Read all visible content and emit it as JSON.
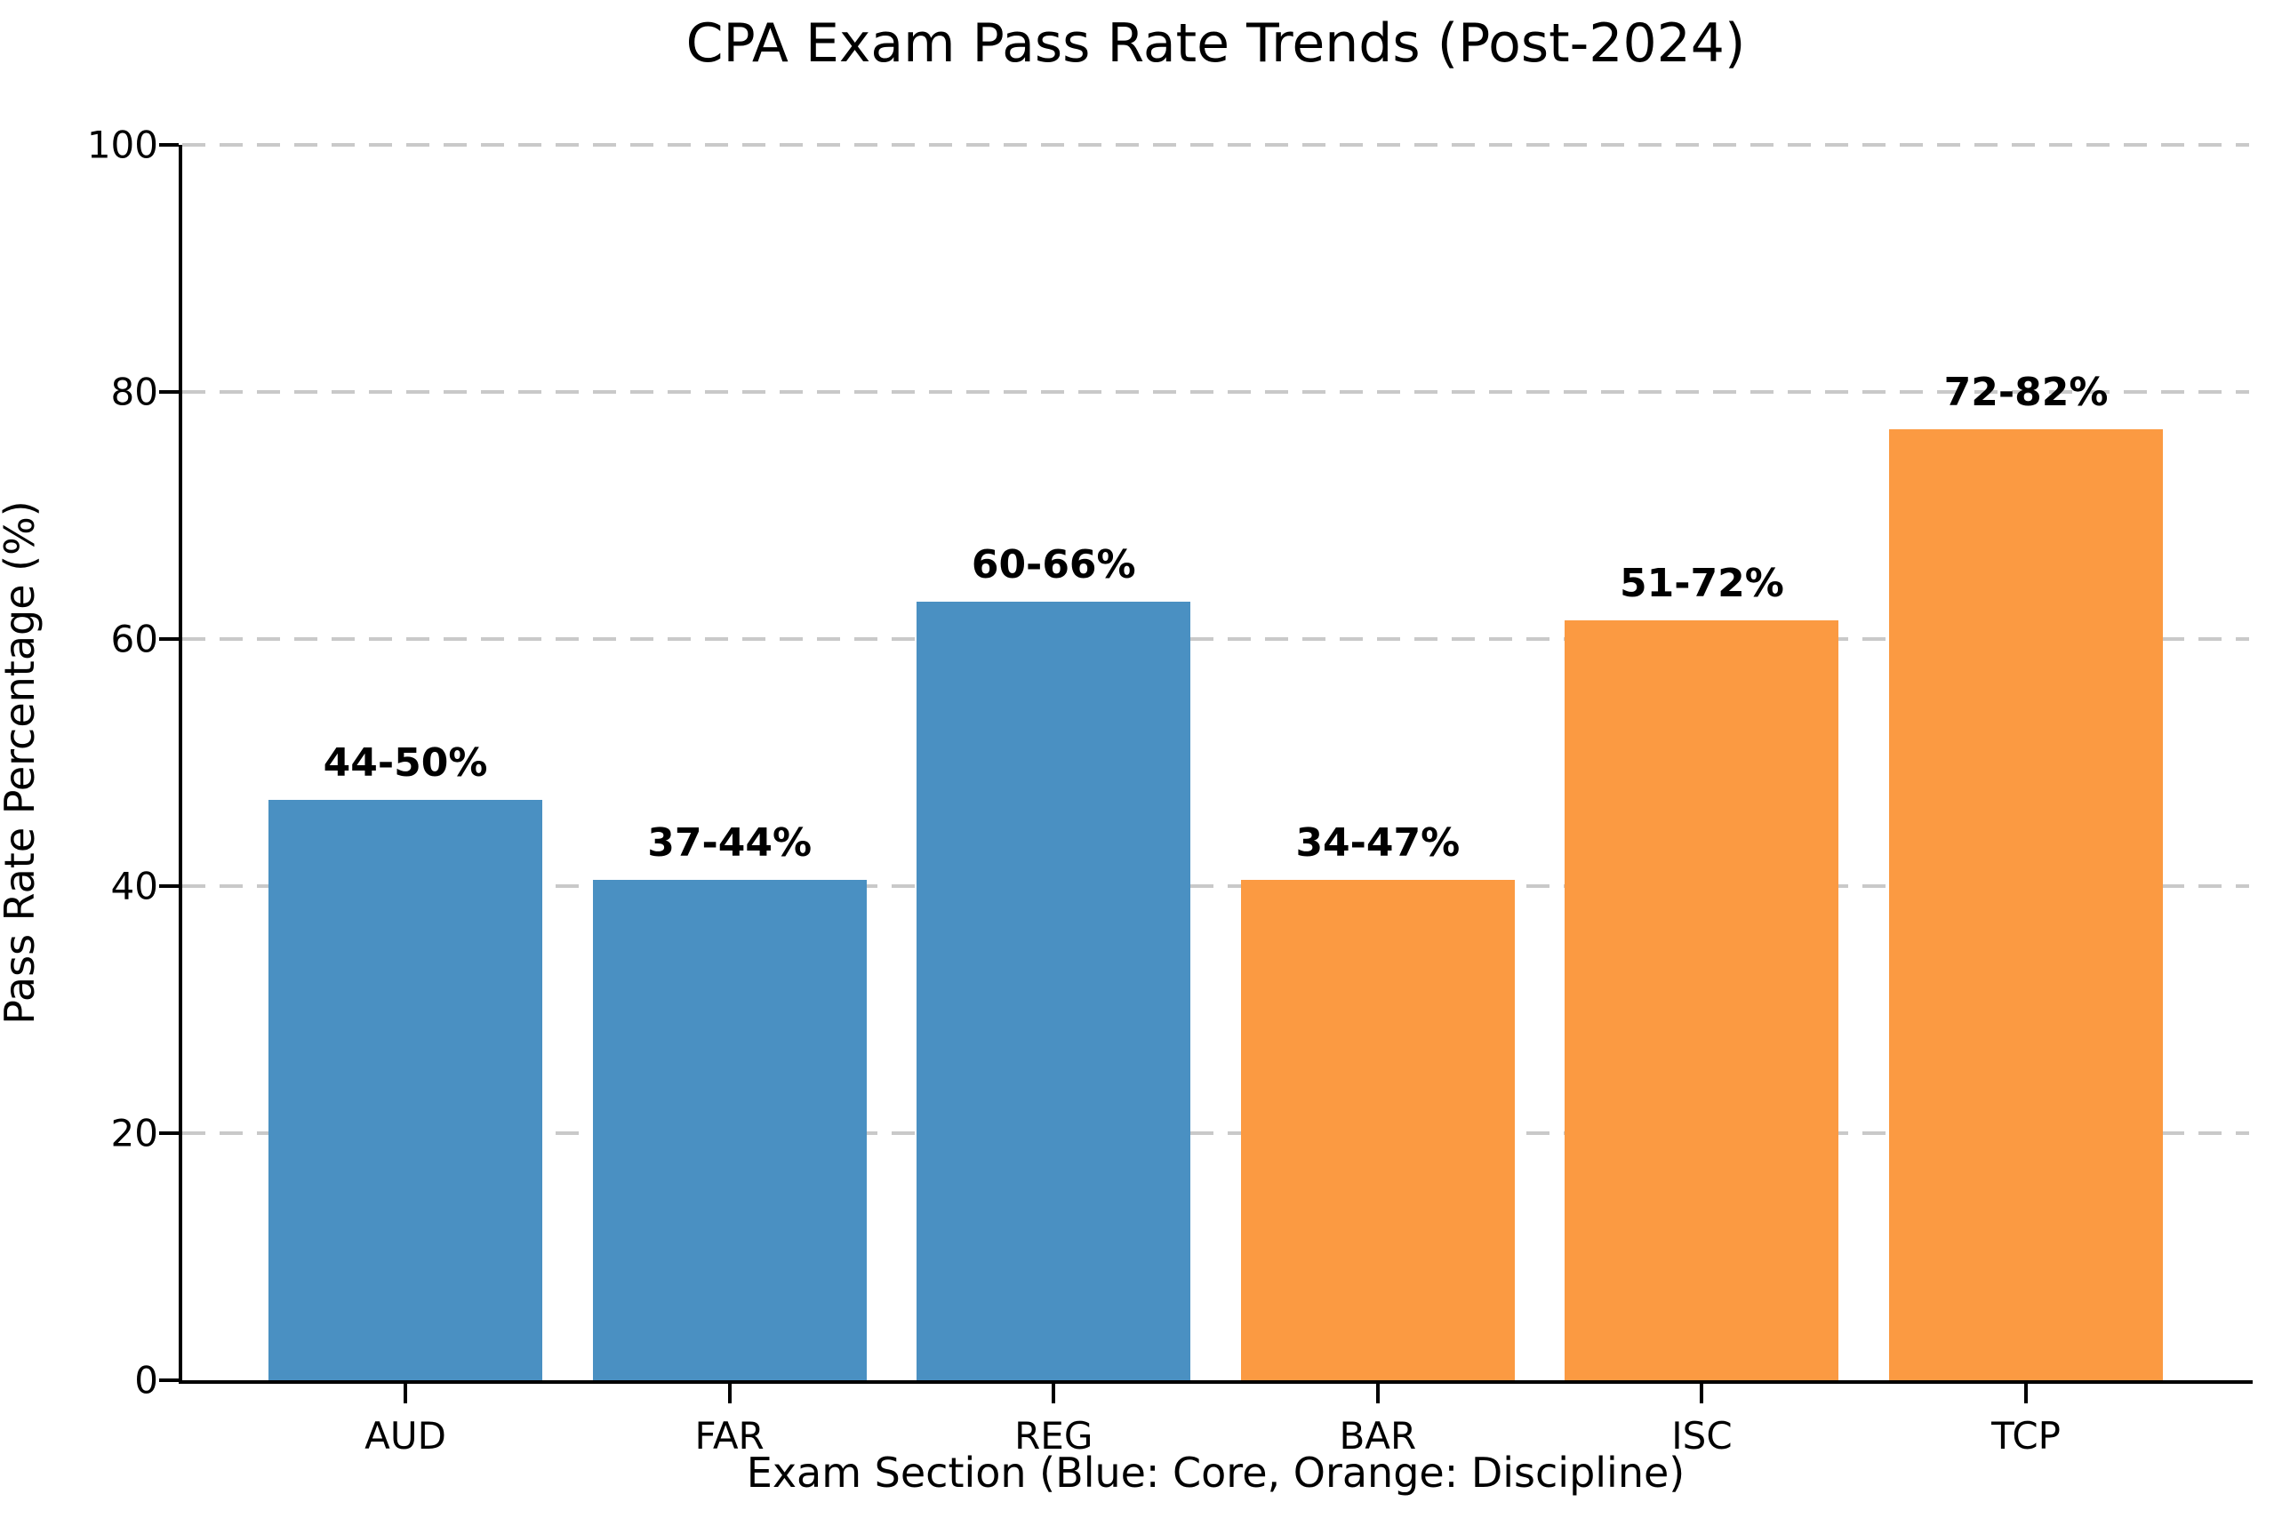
{
  "chart_data": {
    "type": "bar",
    "title": "CPA Exam Pass Rate Trends (Post-2024)",
    "xlabel": "Exam Section (Blue: Core, Orange: Discipline)",
    "ylabel": "Pass Rate Percentage (%)",
    "ylim": [
      0,
      100
    ],
    "yticks": [
      0,
      20,
      40,
      60,
      80,
      100
    ],
    "grid": "horizontal-dashed",
    "legend_position": "none",
    "categories": [
      "AUD",
      "FAR",
      "REG",
      "BAR",
      "ISC",
      "TCP"
    ],
    "values": [
      47,
      40.5,
      63,
      40.5,
      61.5,
      77
    ],
    "bar_labels": [
      "44-50%",
      "37-44%",
      "60-66%",
      "34-47%",
      "51-72%",
      "72-82%"
    ],
    "groups": [
      "core",
      "core",
      "core",
      "discipline",
      "discipline",
      "discipline"
    ],
    "colors": {
      "core": "#4a90c2",
      "discipline": "#fb9a42",
      "grid": "#c9c9c9",
      "axis": "#000000",
      "text": "#000000"
    }
  }
}
